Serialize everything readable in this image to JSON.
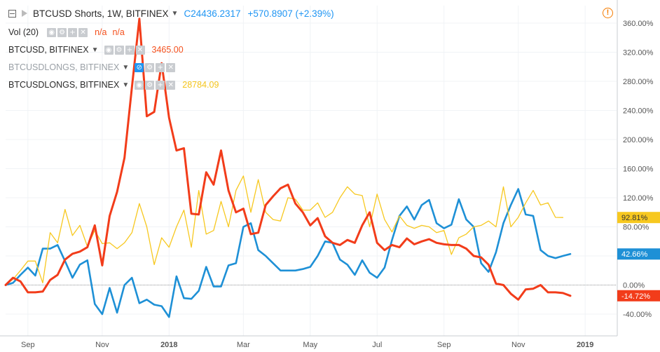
{
  "header": {
    "title": "BTCUSD Shorts, 1W, BITFINEX",
    "close_label": "C",
    "close": "24436.2317",
    "change": "+570.8907 (+2.39%)"
  },
  "legend": [
    {
      "name": "Vol (20)",
      "value": "n/a",
      "value2": "n/a",
      "value_color": "#f4511e",
      "faded": false,
      "hidden": false
    },
    {
      "name": "BTCUSD, BITFINEX",
      "value": "3465.00",
      "value_color": "#f4511e",
      "faded": false,
      "hidden": false
    },
    {
      "name": "BTCUSDLONGS, BITFINEX",
      "value": "",
      "value_color": "#9aa0a6",
      "faded": true,
      "hidden": true
    },
    {
      "name": "BTCUSDLONGS, BITFINEX",
      "value": "28784.09",
      "value_color": "#f4c41a",
      "faded": false,
      "hidden": false
    }
  ],
  "buttons": {
    "eye": "◉",
    "gear": "⚙",
    "plus": "+",
    "close": "✕",
    "hidden_eye": "⊘"
  },
  "chart_data": {
    "type": "line",
    "y_unit": "%",
    "y_ticks": [
      "360.00%",
      "320.00%",
      "280.00%",
      "240.00%",
      "200.00%",
      "160.00%",
      "120.00%",
      "80.00%",
      "40.00%",
      "0.00%",
      "-40.00%"
    ],
    "y_tick_values": [
      360,
      320,
      280,
      240,
      200,
      160,
      120,
      80,
      40,
      0,
      -40
    ],
    "x_ticks": [
      "Sep",
      "Nov",
      "2018",
      "Mar",
      "May",
      "Jul",
      "Sep",
      "Nov",
      "2019"
    ],
    "x_tick_weeks": [
      3,
      13,
      22,
      32,
      41,
      50,
      59,
      69,
      78
    ],
    "ylim": [
      -50,
      365
    ],
    "x_weeks": 82,
    "series": [
      {
        "color": "#1e90d6",
        "width": 2.6,
        "last_label": "42.66%",
        "values": [
          0,
          3,
          14,
          24,
          13,
          50,
          50,
          55,
          33,
          10,
          28,
          34,
          -26,
          -40,
          -4,
          -38,
          0,
          10,
          -25,
          -20,
          -27,
          -29,
          -44,
          12,
          -18,
          -19,
          -8,
          25,
          -2,
          -2,
          27,
          30,
          80,
          85,
          48,
          40,
          30,
          20,
          20,
          20,
          22,
          25,
          40,
          60,
          58,
          35,
          28,
          14,
          34,
          17,
          10,
          24,
          62,
          95,
          108,
          90,
          110,
          117,
          85,
          78,
          83,
          118,
          90,
          80,
          30,
          18,
          45,
          85,
          110,
          132,
          97,
          95,
          48,
          40,
          37,
          40,
          42.66
        ]
      },
      {
        "color": "#f7c81f",
        "width": 1.3,
        "last_label": "92.81%",
        "values": [
          0,
          8,
          20,
          33,
          33,
          3,
          72,
          58,
          104,
          68,
          82,
          53,
          75,
          57,
          58,
          50,
          58,
          72,
          112,
          80,
          28,
          65,
          52,
          80,
          103,
          52,
          130,
          70,
          75,
          115,
          80,
          130,
          150,
          100,
          145,
          100,
          90,
          88,
          120,
          118,
          103,
          103,
          113,
          93,
          100,
          120,
          135,
          125,
          123,
          80,
          125,
          90,
          73,
          95,
          82,
          78,
          82,
          80,
          72,
          75,
          42,
          65,
          70,
          80,
          82,
          88,
          80,
          135,
          80,
          93,
          113,
          130,
          110,
          113,
          93,
          92.81
        ]
      },
      {
        "color": "#f23c1a",
        "width": 3.0,
        "last_label": "-14.72%",
        "values": [
          0,
          10,
          5,
          -10,
          -10,
          -9,
          7,
          14,
          35,
          43,
          46,
          52,
          82,
          27,
          95,
          128,
          175,
          272,
          366,
          232,
          238,
          305,
          230,
          185,
          188,
          98,
          97,
          155,
          138,
          185,
          130,
          100,
          105,
          70,
          72,
          110,
          122,
          133,
          138,
          112,
          100,
          82,
          92,
          67,
          58,
          55,
          62,
          58,
          82,
          100,
          58,
          48,
          55,
          52,
          64,
          56,
          60,
          63,
          58,
          56,
          55,
          55,
          50,
          40,
          38,
          28,
          2,
          0,
          -12,
          -20,
          -6,
          -5,
          0,
          -10,
          -10,
          -11,
          -14.72
        ]
      }
    ]
  }
}
